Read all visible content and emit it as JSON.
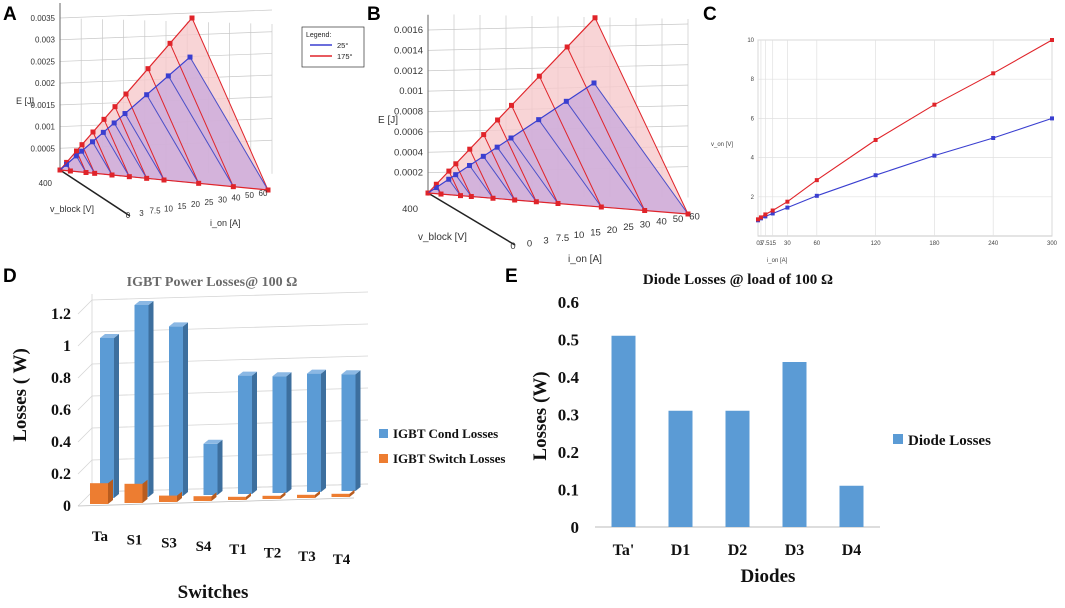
{
  "colors": {
    "blue": "#3a3fd0",
    "red": "#e0242a",
    "bar_blue": "#5b9bd5",
    "bar_orange": "#ed7d31",
    "red_fill": "#f6c9cc",
    "purple_fill": "#c8a8dc",
    "blue_line": "#4a4fc8"
  },
  "panel_labels": [
    "A",
    "B",
    "C",
    "D",
    "E"
  ],
  "chart_data": [
    {
      "id": "A",
      "type": "3d-surface",
      "zlabel": "E [J]",
      "xlabel": "v_block [V]",
      "ylabel": "i_on [A]",
      "z_ticks": [
        "0.0005",
        "0.001",
        "0.0015",
        "0.002",
        "0.0025",
        "0.003",
        "0.0035"
      ],
      "x_ticks": [
        "400"
      ],
      "y_ticks": [
        "0",
        "3",
        "7.5",
        "10",
        "15",
        "20",
        "25",
        "30",
        "40",
        "50",
        "60"
      ],
      "i_values": [
        0,
        3,
        7.5,
        10,
        15,
        20,
        25,
        30,
        40,
        50,
        60
      ],
      "legend_title": "Legend:",
      "series": [
        {
          "name": "25°",
          "color": "blue",
          "peak": 0.0026
        },
        {
          "name": "175°",
          "color": "red",
          "peak": 0.0035
        }
      ]
    },
    {
      "id": "B",
      "type": "3d-surface",
      "zlabel": "E [J]",
      "xlabel": "v_block [V]",
      "ylabel": "i_on [A]",
      "z_ticks": [
        "0.0002",
        "0.0004",
        "0.0006",
        "0.0008",
        "0.001",
        "0.0012",
        "0.0014",
        "0.0016"
      ],
      "x_ticks": [
        "400"
      ],
      "y_ticks": [
        "0",
        "0",
        "3",
        "7.5",
        "10",
        "15",
        "20",
        "25",
        "30",
        "40",
        "50",
        "60"
      ],
      "i_values": [
        0,
        3,
        7.5,
        10,
        15,
        20,
        25,
        30,
        40,
        50,
        60
      ],
      "series": [
        {
          "name": "25°",
          "color": "blue",
          "peak": 0.00108
        },
        {
          "name": "175°",
          "color": "red",
          "peak": 0.00172
        }
      ]
    },
    {
      "id": "C",
      "type": "line",
      "xlabel": "i_on [A]",
      "ylabel": "v_on [V]",
      "x_ticks": [
        "0",
        "3",
        "7.5",
        "15",
        "30",
        "60",
        "120",
        "180",
        "240",
        "300"
      ],
      "y_ticks": [
        "2",
        "4",
        "6",
        "8",
        "10"
      ],
      "x": [
        0,
        3,
        7.5,
        15,
        30,
        60,
        120,
        180,
        240,
        300
      ],
      "series": [
        {
          "name": "25°",
          "color": "blue",
          "values": [
            0.8,
            0.9,
            1.0,
            1.15,
            1.45,
            2.05,
            3.1,
            4.1,
            5.0,
            6.0
          ]
        },
        {
          "name": "175°",
          "color": "red",
          "values": [
            0.85,
            0.95,
            1.1,
            1.3,
            1.75,
            2.85,
            4.9,
            6.7,
            8.3,
            10.0
          ]
        }
      ],
      "ylim": [
        0,
        10
      ],
      "xlim": [
        0,
        300
      ]
    },
    {
      "id": "D",
      "type": "bar",
      "title": "IGBT Power Losses@ 100 Ω",
      "xlabel": "Switches",
      "ylabel": "Losses ( W)",
      "categories": [
        "Ta",
        "S1",
        "S3",
        "S4",
        "T1",
        "T2",
        "T3",
        "T4"
      ],
      "y_ticks": [
        "0",
        "0.2",
        "0.4",
        "0.6",
        "0.8",
        "1",
        "1.2"
      ],
      "ylim": [
        0,
        1.2
      ],
      "series": [
        {
          "name": "IGBT Cond Losses",
          "color": "bar_blue",
          "values": [
            1.0,
            1.2,
            1.06,
            0.32,
            0.74,
            0.73,
            0.74,
            0.73
          ]
        },
        {
          "name": "IGBT Switch Losses",
          "color": "bar_orange",
          "values": [
            0.13,
            0.12,
            0.04,
            0.03,
            0.02,
            0.02,
            0.02,
            0.02
          ]
        }
      ]
    },
    {
      "id": "E",
      "type": "bar",
      "title": "Diode  Losses @ load of 100 Ω",
      "xlabel": "Diodes",
      "ylabel": "Losses (W)",
      "categories": [
        "Ta'",
        "D1",
        "D2",
        "D3",
        "D4"
      ],
      "y_ticks": [
        "0",
        "0.1",
        "0.2",
        "0.3",
        "0.4",
        "0.5",
        "0.6"
      ],
      "ylim": [
        0,
        0.6
      ],
      "series": [
        {
          "name": "Diode  Losses",
          "color": "bar_blue",
          "values": [
            0.51,
            0.31,
            0.31,
            0.44,
            0.11
          ]
        }
      ]
    }
  ]
}
